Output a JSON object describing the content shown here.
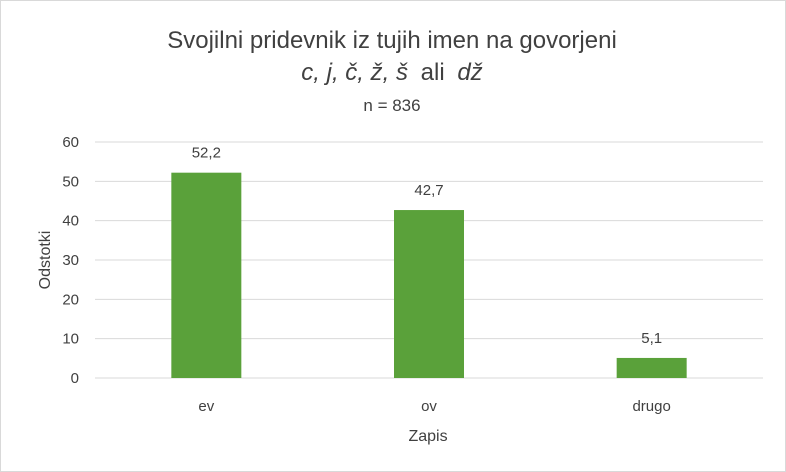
{
  "chart_data": {
    "type": "bar",
    "title": "Svojilni pridevnik iz tujih imen na govorjeni",
    "subtitle_italic_parts": [
      "c, j, č, ž, š",
      "dž"
    ],
    "subtitle_connector": "ali",
    "subtitle_n": "n = 836",
    "categories": [
      "ev",
      "ov",
      "drugo"
    ],
    "values": [
      52.2,
      42.7,
      5.1
    ],
    "value_labels": [
      "52,2",
      "42,7",
      "5,1"
    ],
    "xlabel": "Zapis",
    "ylabel": "Odstotki",
    "ylim": [
      0,
      60
    ],
    "yticks": [
      "0",
      "10",
      "20",
      "30",
      "40",
      "50",
      "60"
    ],
    "grid": true,
    "legend": "none",
    "colors": {
      "bar": "#5aa13a",
      "grid": "#d9d9d9",
      "text": "#404040"
    }
  }
}
